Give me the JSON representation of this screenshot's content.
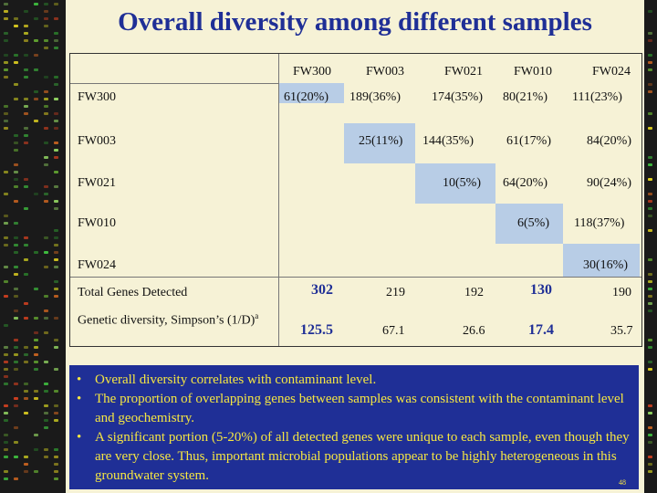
{
  "title": "Overall diversity among different samples",
  "table": {
    "columns": [
      "FW300",
      "FW003",
      "FW021",
      "FW010",
      "FW024"
    ],
    "rows": [
      {
        "label": "FW300",
        "cells": [
          "61(20%)",
          "189(36%)",
          "174(35%)",
          "80(21%)",
          "111(23%)"
        ]
      },
      {
        "label": "FW003",
        "cells": [
          "",
          "25(11%)",
          "144(35%)",
          "61(17%)",
          "84(20%)"
        ]
      },
      {
        "label": "FW021",
        "cells": [
          "",
          "",
          "10(5%)",
          "64(20%)",
          "90(24%)"
        ]
      },
      {
        "label": "FW010",
        "cells": [
          "",
          "",
          "",
          "6(5%)",
          "118(37%)"
        ]
      },
      {
        "label": "FW024",
        "cells": [
          "",
          "",
          "",
          "",
          "30(16%)"
        ]
      }
    ],
    "total_label": "Total Genes Detected",
    "totals": [
      "302",
      "219",
      "192",
      "130",
      "190"
    ],
    "diversity_label": "Genetic diversity, Simpson’s (1/D)",
    "diversity_sup": "a",
    "diversity": [
      "125.5",
      "67.1",
      "26.6",
      "17.4",
      "35.7"
    ]
  },
  "bullets": [
    "Overall diversity correlates with contaminant level.",
    "The proportion of overlapping genes between samples was consistent with the contaminant level and geochemistry.",
    "A significant portion (5-20%) of all detected genes were unique to each sample, even though they are very close. Thus, important microbial populations appear to be highly heterogeneous in this groundwater system."
  ],
  "bullet_mark": "•",
  "slide_number": "48",
  "colors": {
    "title": "#1f2f96",
    "highlight": "#b8cde6",
    "notes_bg": "#1f2f96",
    "notes_text": "#f5e642",
    "slide_bg": "#f6f2d6"
  }
}
